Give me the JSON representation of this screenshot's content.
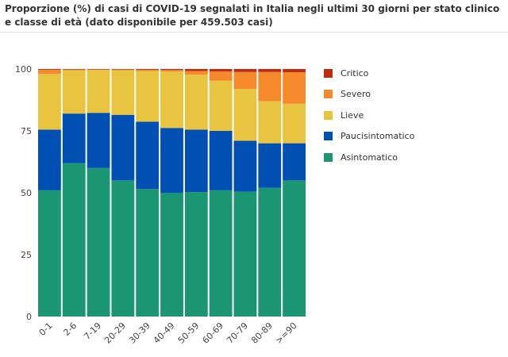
{
  "title": "Proporzione (%) di casi di COVID-19 segnalati in Italia negli ultimi 30 giorni per stato clinico e classe di età (dato disponibile per 459.503 casi)",
  "chart_data": {
    "type": "bar",
    "stacked": true,
    "categories": [
      "0-1",
      "2-6",
      "7-19",
      "20-29",
      "30-39",
      "40-49",
      "50-59",
      "60-69",
      "70-79",
      "80-89",
      ">=90"
    ],
    "series": [
      {
        "name": "Asintomatico",
        "color": "#1b9672",
        "values": [
          51,
          62,
          60,
          55,
          51.5,
          50,
          50.3,
          51,
          50.5,
          52,
          55
        ]
      },
      {
        "name": "Paucisintomatico",
        "color": "#0050b4",
        "values": [
          24.5,
          20,
          22.3,
          26.5,
          27.2,
          26.2,
          25.2,
          24,
          20.5,
          18,
          15
        ]
      },
      {
        "name": "Lieve",
        "color": "#e9c440",
        "values": [
          22.5,
          17.5,
          17.3,
          18,
          20.5,
          22.8,
          22.2,
          20.3,
          21,
          17,
          16
        ]
      },
      {
        "name": "Severo",
        "color": "#f6892b",
        "values": [
          1.7,
          0.3,
          0.2,
          0.3,
          0.5,
          0.6,
          1.5,
          3.7,
          6.8,
          11.8,
          12.7
        ]
      },
      {
        "name": "Critico",
        "color": "#bf2c10",
        "values": [
          0.3,
          0.2,
          0.2,
          0.2,
          0.3,
          0.4,
          0.8,
          1,
          1.2,
          1.2,
          1.3
        ]
      }
    ],
    "legend_order": [
      "Critico",
      "Severo",
      "Lieve",
      "Paucisintomatico",
      "Asintomatico"
    ],
    "ylim": [
      0,
      100
    ],
    "yticks": [
      0,
      25,
      50,
      75,
      100
    ],
    "grid": false,
    "legend_position": "right"
  }
}
